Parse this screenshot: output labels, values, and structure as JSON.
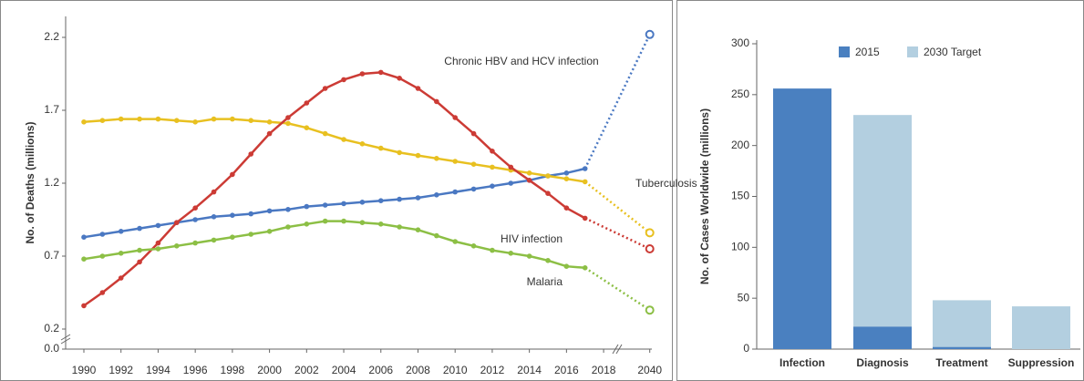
{
  "chart_data": [
    {
      "type": "line",
      "y_label": "No. of Deaths (millions)",
      "x": [
        1990,
        1991,
        1992,
        1993,
        1994,
        1995,
        1996,
        1997,
        1998,
        1999,
        2000,
        2001,
        2002,
        2003,
        2004,
        2005,
        2006,
        2007,
        2008,
        2009,
        2010,
        2011,
        2012,
        2013,
        2014,
        2015,
        2016,
        2017,
        2040
      ],
      "xlim": [
        1989,
        2041
      ],
      "xticks": [
        1990,
        1992,
        1994,
        1996,
        1998,
        2000,
        2002,
        2004,
        2006,
        2008,
        2010,
        2012,
        2014,
        2016,
        2018,
        2040
      ],
      "ylim": [
        0,
        2.3
      ],
      "yticks": [
        {
          "value": 0,
          "label": "0.0"
        },
        0.2,
        0.7,
        1.2,
        1.7,
        2.2
      ],
      "series": [
        {
          "name": "Chronic HBV and HCV infection",
          "color": "#4a78c2",
          "values": [
            0.83,
            0.85,
            0.87,
            0.89,
            0.91,
            0.93,
            0.95,
            0.97,
            0.98,
            0.99,
            1.01,
            1.02,
            1.04,
            1.05,
            1.06,
            1.07,
            1.08,
            1.09,
            1.1,
            1.12,
            1.14,
            1.16,
            1.18,
            1.2,
            1.22,
            1.25,
            1.27,
            1.3,
            2.22
          ]
        },
        {
          "name": "Tuberculosis",
          "color": "#e8c020",
          "values": [
            1.62,
            1.63,
            1.64,
            1.64,
            1.64,
            1.63,
            1.62,
            1.64,
            1.64,
            1.63,
            1.62,
            1.61,
            1.58,
            1.54,
            1.5,
            1.47,
            1.44,
            1.41,
            1.39,
            1.37,
            1.35,
            1.33,
            1.31,
            1.29,
            1.27,
            1.25,
            1.23,
            1.21,
            0.86
          ]
        },
        {
          "name": "HIV infection",
          "color": "#cc3b35",
          "values": [
            0.36,
            0.45,
            0.55,
            0.66,
            0.79,
            0.93,
            1.03,
            1.14,
            1.26,
            1.4,
            1.54,
            1.65,
            1.75,
            1.85,
            1.91,
            1.95,
            1.96,
            1.92,
            1.85,
            1.76,
            1.65,
            1.54,
            1.42,
            1.31,
            1.22,
            1.13,
            1.03,
            0.96,
            0.75
          ]
        },
        {
          "name": "Malaria",
          "color": "#8cbf45",
          "values": [
            0.68,
            0.7,
            0.72,
            0.74,
            0.75,
            0.77,
            0.79,
            0.81,
            0.83,
            0.85,
            0.87,
            0.9,
            0.92,
            0.94,
            0.94,
            0.93,
            0.92,
            0.9,
            0.88,
            0.84,
            0.8,
            0.77,
            0.74,
            0.72,
            0.7,
            0.67,
            0.63,
            0.62,
            0.33
          ]
        }
      ]
    },
    {
      "type": "bar",
      "y_label": "No. of Cases Worldwide (millions)",
      "categories": [
        "Infection",
        "Diagnosis",
        "Treatment",
        "Suppression"
      ],
      "ylim": [
        0,
        300
      ],
      "yticks": [
        0,
        50,
        100,
        150,
        200,
        250,
        300
      ],
      "series": [
        {
          "name": "2015",
          "color": "#4a80c0",
          "values": [
            256,
            22,
            2,
            null
          ]
        },
        {
          "name": "2030 Target",
          "color": "#b3cfe0",
          "values": [
            null,
            230,
            48,
            42
          ]
        }
      ]
    }
  ]
}
